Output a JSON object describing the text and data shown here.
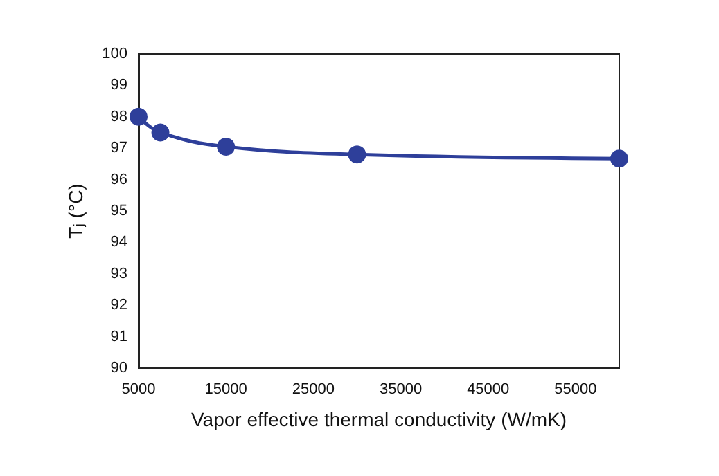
{
  "chart_data": {
    "type": "line",
    "xlabel": "Vapor effective thermal conductivity (W/mK)",
    "ylabel": "T$_{j}$ (°C)",
    "x": [
      5000,
      7500,
      15000,
      30000,
      60000
    ],
    "series": [
      {
        "color": "#2e3f9a",
        "values": [
          98.0,
          97.5,
          97.05,
          96.8,
          96.67
        ]
      }
    ],
    "xlim": [
      5000,
      60000
    ],
    "xticks": [
      5000,
      15000,
      25000,
      35000,
      45000,
      55000
    ],
    "ylim": [
      90,
      100
    ],
    "yticks": [
      90,
      91,
      92,
      93,
      94,
      95,
      96,
      97,
      98,
      99,
      100
    ],
    "marker": "circle",
    "line_style": "solid",
    "grid": false
  }
}
